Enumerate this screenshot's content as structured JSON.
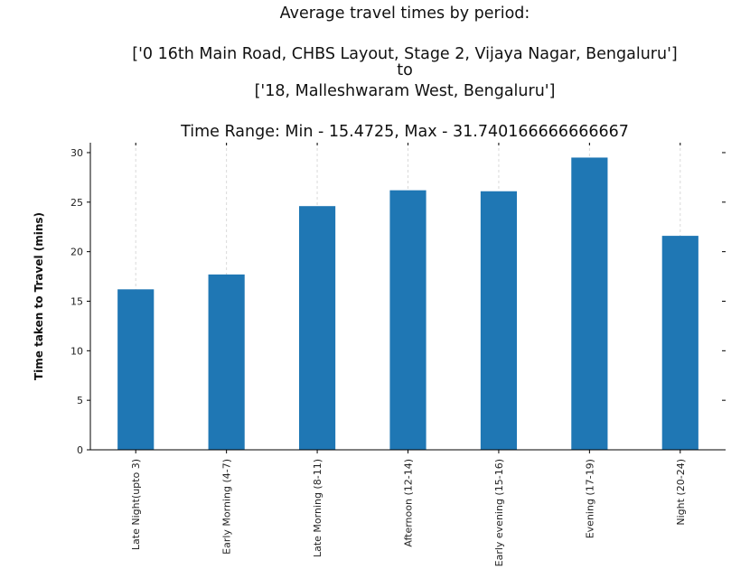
{
  "chart_data": {
    "type": "bar",
    "title_lines": [
      "Average travel times by period:",
      "",
      "['0 16th Main Road, CHBS Layout, Stage 2, Vijaya Nagar, Bengaluru']",
      "to",
      "['18, Malleshwaram West, Bengaluru']",
      "",
      "Time Range: Min - 15.4725, Max - 31.740166666666667"
    ],
    "xlabel": "",
    "ylabel": "Time taken to Travel (mins)",
    "categories": [
      "Late Night(upto 3)",
      "Early Morning (4-7)",
      "Late Morning (8-11)",
      "Afternoon (12-14)",
      "Early evening (15-16)",
      "Evening (17-19)",
      "Night (20-24)"
    ],
    "values": [
      16.2,
      17.7,
      24.6,
      26.2,
      26.1,
      29.5,
      21.6
    ],
    "ylim": [
      0,
      31
    ],
    "yticks": [
      0,
      5,
      10,
      15,
      20,
      25,
      30
    ],
    "bar_color": "#1f77b4",
    "grid": "x-dotted",
    "legend": "none"
  }
}
